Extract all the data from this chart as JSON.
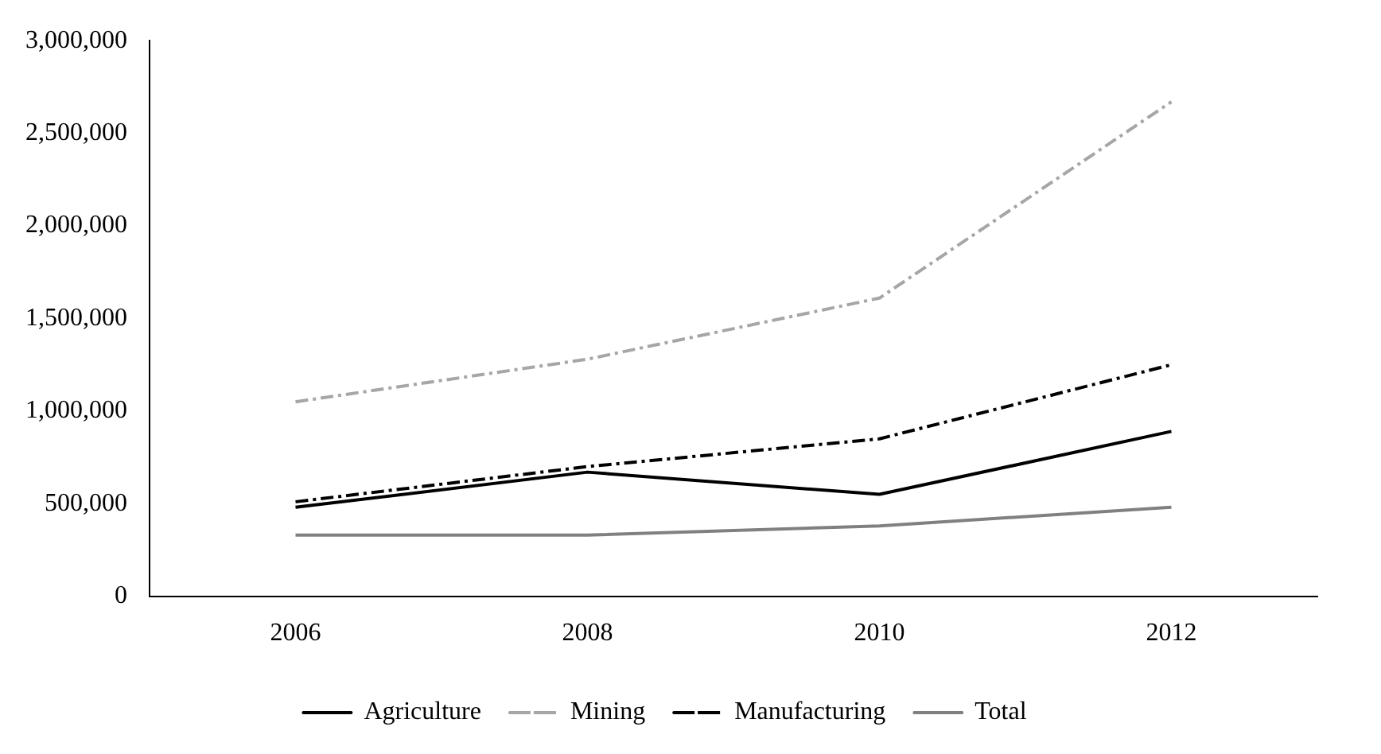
{
  "chart_data": {
    "type": "line",
    "categories": [
      "2006",
      "2008",
      "2010",
      "2012"
    ],
    "series": [
      {
        "name": "Agriculture",
        "color": "#000000",
        "line_style": "solid",
        "values": [
          480000,
          670000,
          550000,
          890000
        ]
      },
      {
        "name": "Mining",
        "color": "#a6a6a6",
        "line_style": "dashed",
        "values": [
          1050000,
          1280000,
          1610000,
          2670000
        ]
      },
      {
        "name": "Manufacturing",
        "color": "#000000",
        "line_style": "dashed",
        "values": [
          510000,
          700000,
          850000,
          1250000
        ]
      },
      {
        "name": "Total",
        "color": "#808080",
        "line_style": "solid",
        "values": [
          330000,
          330000,
          380000,
          480000
        ]
      }
    ],
    "ylim": [
      0,
      3000000
    ],
    "yticks": [
      0,
      {
        "value": 500000,
        "label": "500,000"
      },
      {
        "value": 1000000,
        "label": "1,000,000"
      },
      {
        "value": 1500000,
        "label": "1,500,000"
      },
      {
        "value": 2000000,
        "label": "2,000,000"
      },
      {
        "value": 2500000,
        "label": "2,500,000"
      },
      {
        "value": 3000000,
        "label": "3,000,000"
      }
    ],
    "grid": false,
    "legend": "bottom",
    "marker": "none"
  }
}
